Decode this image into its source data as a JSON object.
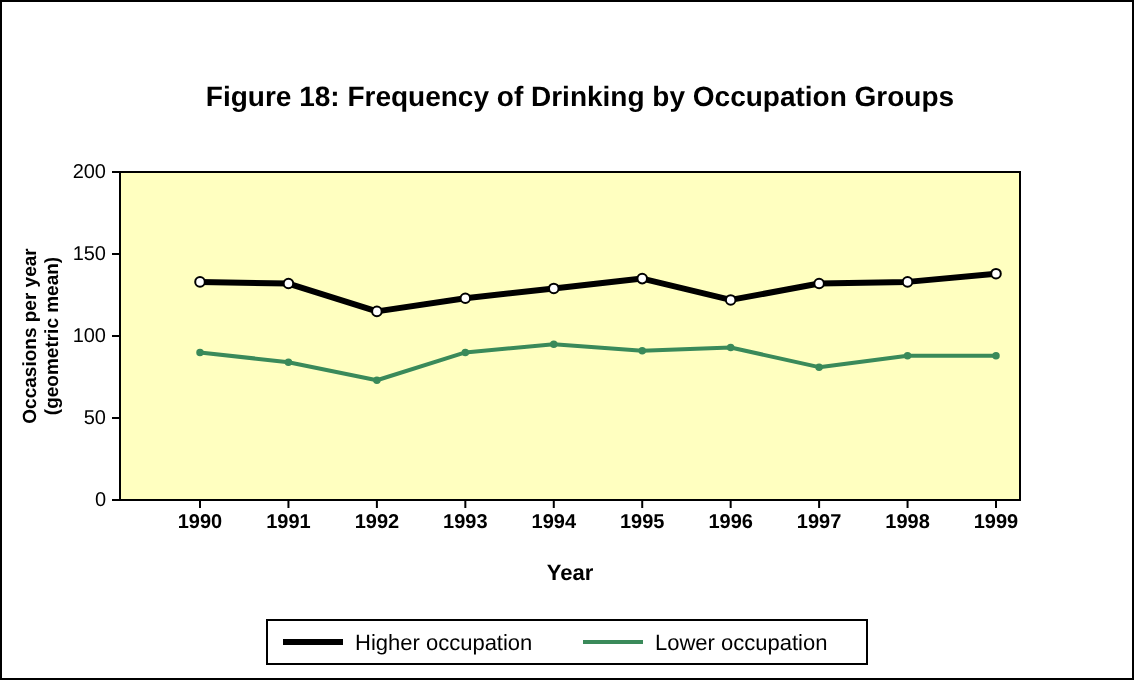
{
  "chart_data": {
    "type": "line",
    "title": "Figure 18: Frequency of Drinking by Occupation Groups",
    "xlabel": "Year",
    "ylabel": "Occasions per year (geometric mean)",
    "categories": [
      "1990",
      "1991",
      "1992",
      "1993",
      "1994",
      "1995",
      "1996",
      "1997",
      "1998",
      "1999"
    ],
    "series": [
      {
        "name": "Higher occupation",
        "color": "#000000",
        "values": [
          133,
          132,
          115,
          123,
          129,
          135,
          122,
          132,
          133,
          138
        ]
      },
      {
        "name": "Lower occupation",
        "color": "#3a8a5a",
        "values": [
          90,
          84,
          73,
          90,
          95,
          91,
          93,
          81,
          88,
          88
        ]
      }
    ],
    "ylim": [
      0,
      200
    ],
    "yticks": [
      0,
      50,
      100,
      150,
      200
    ],
    "grid": false,
    "legend": "bottom",
    "marker": "circle",
    "line_style": "solid"
  }
}
